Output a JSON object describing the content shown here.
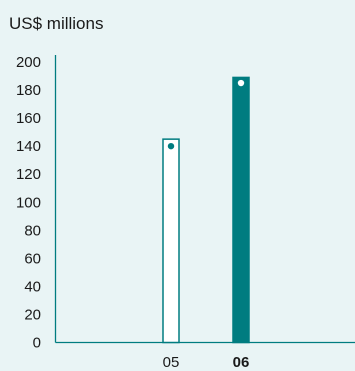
{
  "chart_data": {
    "type": "bar",
    "title": "US$ millions",
    "xlabel": "",
    "ylabel": "",
    "categories": [
      "05",
      "06"
    ],
    "category_bold": [
      false,
      true
    ],
    "values": [
      145,
      189
    ],
    "markers": [
      140,
      185
    ],
    "ylim": [
      0,
      200
    ],
    "yticks": [
      "0",
      "20",
      "40",
      "60",
      "80",
      "100",
      "120",
      "140",
      "160",
      "180",
      "200"
    ],
    "bar_styles": [
      "outline",
      "filled"
    ],
    "grid": false,
    "legend": "none"
  },
  "colors": {
    "background": "#e9f4f5",
    "accent": "#007c80",
    "bar_outline_fill": "#ffffff",
    "marker_on_outline": "#007c80",
    "marker_on_filled": "#ffffff",
    "text": "#1a1a1a"
  }
}
